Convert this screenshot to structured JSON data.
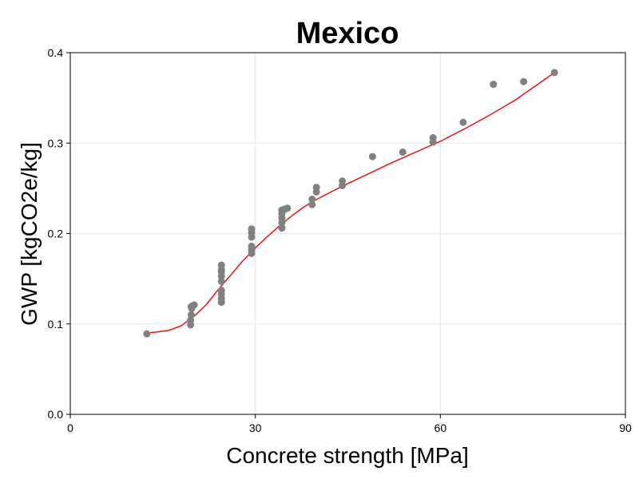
{
  "chart_data": {
    "type": "scatter",
    "title": "Mexico",
    "xlabel": "Concrete strength [MPa]",
    "ylabel": "GWP [kgCO2e/kg]",
    "xlim": [
      0,
      90
    ],
    "ylim": [
      0,
      0.4
    ],
    "xticks": [
      "0",
      "30",
      "60",
      "90"
    ],
    "yticks": [
      "0.0",
      "0.1",
      "0.2",
      "0.3",
      "0.4"
    ],
    "grid": true,
    "colors": {
      "points": "#808080",
      "fit": "#ee1111",
      "grid": "#e6e6e6"
    },
    "series": [
      {
        "kind": "points",
        "x": [
          12.4,
          19.5,
          19.5,
          19.6,
          19.7,
          19.6,
          19.8,
          20.1,
          24.5,
          24.5,
          24.5,
          24.5,
          24.5,
          24.5,
          24.5,
          24.5,
          24.5,
          29.4,
          29.4,
          29.4,
          29.4,
          29.4,
          29.4,
          34.3,
          34.3,
          34.3,
          34.3,
          34.3,
          34.8,
          35.2,
          39.2,
          39.2,
          39.9,
          39.9,
          44.1,
          44.1,
          49.0,
          53.9,
          58.8,
          58.8,
          63.7,
          68.6,
          73.5,
          78.5
        ],
        "y": [
          0.089,
          0.099,
          0.104,
          0.11,
          0.117,
          0.119,
          0.12,
          0.121,
          0.124,
          0.128,
          0.133,
          0.137,
          0.147,
          0.153,
          0.158,
          0.165,
          0.16,
          0.178,
          0.182,
          0.186,
          0.196,
          0.201,
          0.205,
          0.206,
          0.212,
          0.217,
          0.222,
          0.226,
          0.227,
          0.228,
          0.232,
          0.238,
          0.246,
          0.251,
          0.253,
          0.258,
          0.285,
          0.29,
          0.301,
          0.306,
          0.323,
          0.365,
          0.368,
          0.378
        ]
      },
      {
        "kind": "fit-line",
        "x": [
          12.4,
          14,
          16,
          18,
          20,
          22,
          24,
          26,
          28,
          30,
          32,
          34,
          36,
          38,
          40,
          42,
          44,
          48,
          52,
          56,
          60,
          64,
          68,
          72,
          76,
          78.5
        ],
        "y": [
          0.09,
          0.091,
          0.093,
          0.098,
          0.108,
          0.121,
          0.138,
          0.154,
          0.17,
          0.184,
          0.197,
          0.209,
          0.22,
          0.23,
          0.238,
          0.245,
          0.252,
          0.265,
          0.278,
          0.29,
          0.302,
          0.316,
          0.331,
          0.347,
          0.366,
          0.378
        ]
      }
    ]
  }
}
